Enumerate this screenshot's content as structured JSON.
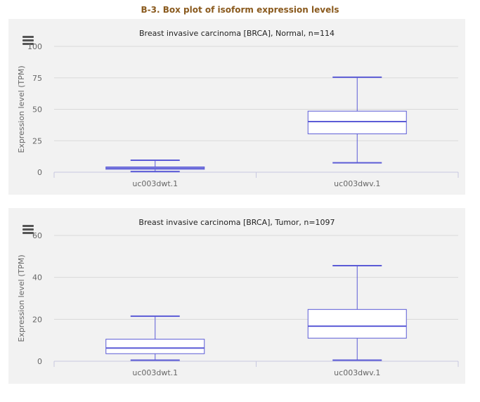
{
  "page": {
    "title": "B-3. Box plot of isoform expression levels"
  },
  "colors": {
    "title": "#8a5a1e",
    "box_stroke": "#5b5bd6",
    "panel_bg": "#f2f2f2",
    "grid": "#d9d9d9"
  },
  "icons": {
    "menu": "hamburger-menu-icon"
  },
  "chart_data": [
    {
      "type": "box",
      "title": "Breast invasive carcinoma [BRCA], Normal, n=114",
      "ylabel": "Expression level (TPM)",
      "ylim": [
        0,
        100
      ],
      "yticks": [
        0,
        25,
        50,
        75,
        100
      ],
      "grid": true,
      "categories": [
        "uc003dwt.1",
        "uc003dwv.1"
      ],
      "boxes": [
        {
          "min": 0.5,
          "q1": 2.3,
          "median": 3.2,
          "q3": 4.2,
          "max": 9.5
        },
        {
          "min": 7.5,
          "q1": 30.5,
          "median": 40.2,
          "q3": 48.5,
          "max": 75.5
        }
      ]
    },
    {
      "type": "box",
      "title": "Breast invasive carcinoma [BRCA], Tumor, n=1097",
      "ylabel": "Expression level (TPM)",
      "ylim": [
        0,
        60
      ],
      "yticks": [
        0,
        20,
        40,
        60
      ],
      "grid": true,
      "categories": [
        "uc003dwt.1",
        "uc003dwv.1"
      ],
      "boxes": [
        {
          "min": 0.5,
          "q1": 3.6,
          "median": 6.3,
          "q3": 10.5,
          "max": 21.5
        },
        {
          "min": 0.5,
          "q1": 11.0,
          "median": 16.7,
          "q3": 24.7,
          "max": 45.6
        }
      ]
    }
  ]
}
